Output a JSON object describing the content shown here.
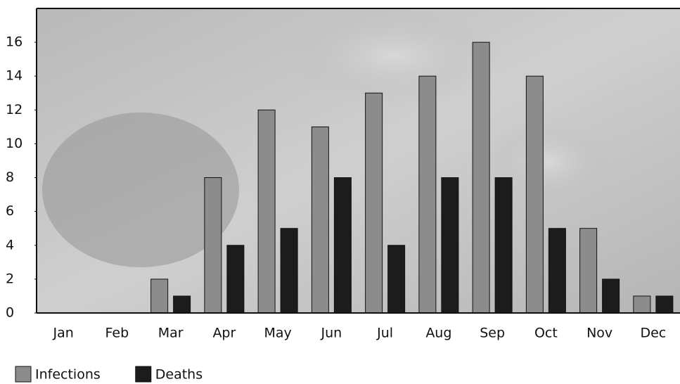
{
  "chart_data": {
    "type": "bar",
    "categories": [
      "Jan",
      "Feb",
      "Mar",
      "Apr",
      "May",
      "Jun",
      "Jul",
      "Aug",
      "Sep",
      "Oct",
      "Nov",
      "Dec"
    ],
    "series": [
      {
        "name": "Infections",
        "color": "#8c8c8c",
        "values": [
          0,
          0,
          2,
          8,
          12,
          11,
          13,
          14,
          16,
          14,
          5,
          1
        ]
      },
      {
        "name": "Deaths",
        "color": "#1c1c1c",
        "values": [
          0,
          0,
          1,
          4,
          5,
          8,
          4,
          8,
          8,
          5,
          2,
          1
        ]
      }
    ],
    "ylim": [
      0,
      18
    ],
    "yticks": [
      0,
      2,
      4,
      6,
      8,
      10,
      12,
      14,
      16
    ],
    "grid": false,
    "legend": "bottom-left"
  }
}
